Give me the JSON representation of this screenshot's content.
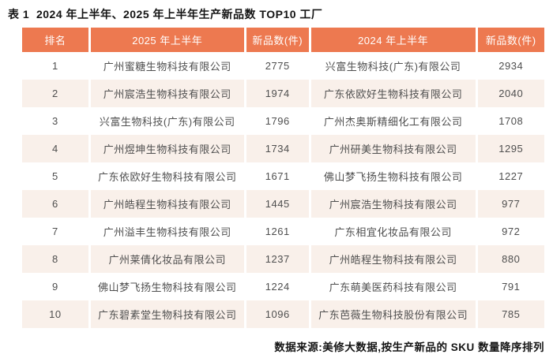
{
  "colors": {
    "header_bg": "#ED7950",
    "header_text": "#FFFFFF",
    "row_odd_bg": "#FFFFFF",
    "row_even_bg": "#F9F0EA",
    "body_text": "#4F4F4F",
    "title_text": "#141414"
  },
  "chart_data": {
    "type": "table",
    "title": "表 1  2024 年上半年、2025 年上半年生产新品数 TOP10 工厂",
    "columns": [
      "排名",
      "2025 年上半年",
      "新品数(件)",
      "2024 年上半年",
      "新品数(件)"
    ],
    "rows": [
      [
        "1",
        "广州蜜糖生物科技有限公司",
        "2775",
        "兴富生物科技(广东)有限公司",
        "2934"
      ],
      [
        "2",
        "广州宸浩生物科技有限公司",
        "1974",
        "广东依欧好生物科技有限公司",
        "2040"
      ],
      [
        "3",
        "兴富生物科技(广东)有限公司",
        "1796",
        "广州杰奥斯精细化工有限公司",
        "1708"
      ],
      [
        "4",
        "广州煜坤生物科技有限公司",
        "1734",
        "广州研美生物科技有限公司",
        "1295"
      ],
      [
        "5",
        "广东依欧好生物科技有限公司",
        "1671",
        "佛山梦飞扬生物科技有限公司",
        "1227"
      ],
      [
        "6",
        "广州皓程生物科技有限公司",
        "1445",
        "广州宸浩生物科技有限公司",
        "977"
      ],
      [
        "7",
        "广州溢丰生物科技有限公司",
        "1261",
        "广东相宜化妆品有限公司",
        "972"
      ],
      [
        "8",
        "广州莱倩化妆品有限公司",
        "1237",
        "广州皓程生物科技有限公司",
        "880"
      ],
      [
        "9",
        "佛山梦飞扬生物科技有限公司",
        "1224",
        "广东萌美医药科技有限公司",
        "791"
      ],
      [
        "10",
        "广东碧素堂生物科技有限公司",
        "1096",
        "广东芭薇生物科技股份有限公司",
        "785"
      ]
    ],
    "source_note": "数据来源:美修大数据,按生产新品的 SKU 数量降序排列"
  }
}
